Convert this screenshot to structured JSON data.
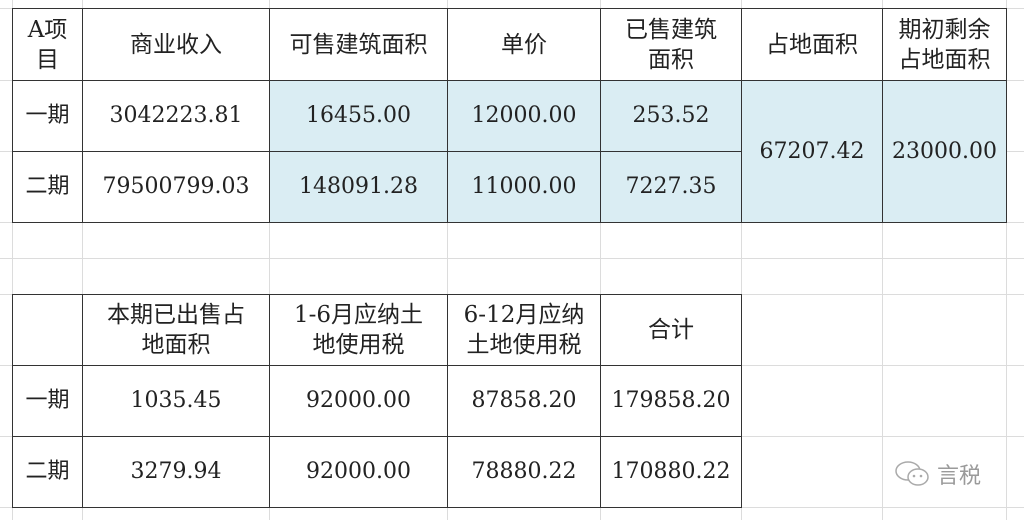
{
  "table1": {
    "headers": [
      "A项\n目",
      "商业收入",
      "可售建筑面积",
      "单价",
      "已售建筑\n面积",
      "占地面积",
      "期初剩余\n占地面积"
    ],
    "rows": [
      [
        "一期",
        "3042223.81",
        "16455.00",
        "12000.00",
        "253.52"
      ],
      [
        "二期",
        "79500799.03",
        "148091.28",
        "11000.00",
        "7227.35"
      ]
    ],
    "merged": [
      "67207.42",
      "23000.00"
    ]
  },
  "table2": {
    "headers": [
      "",
      "本期已出售占\n地面积",
      "1-6月应纳土\n地使用税",
      "6-12月应纳\n土地使用税",
      "合计"
    ],
    "rows": [
      [
        "一期",
        "1035.45",
        "92000.00",
        "87858.20",
        "179858.20"
      ],
      [
        "二期",
        "3279.94",
        "92000.00",
        "78880.22",
        "170880.22"
      ]
    ]
  },
  "watermark": {
    "icon": "wechat-icon",
    "text": "言税"
  },
  "colors": {
    "highlight_fill": "#daedf3",
    "border": "#333333",
    "gridline": "#dcdcdc"
  }
}
